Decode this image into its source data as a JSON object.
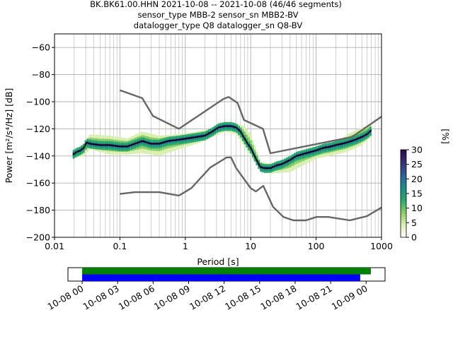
{
  "title_lines": [
    "BK.BK61.00.HHN   2021-10-08 -- 2021-10-08  (46/46 segments)",
    "sensor_type MBB-2 sensor_sn MBB2-BV",
    "datalogger_type Q8 datalogger_sn Q8-BV"
  ],
  "chart_data": {
    "type": "heatmap",
    "xlabel": "Period [s]",
    "ylabel": "Power [m²/s⁴/Hz] [dB]",
    "xscale": "log",
    "xlim": [
      0.01,
      1000
    ],
    "ylim": [
      -200,
      -50
    ],
    "x_ticks": [
      {
        "value": 0.01,
        "label": "0.01"
      },
      {
        "value": 0.1,
        "label": "0.1"
      },
      {
        "value": 1,
        "label": "1"
      },
      {
        "value": 10,
        "label": "10"
      },
      {
        "value": 100,
        "label": "100"
      },
      {
        "value": 1000,
        "label": "1000"
      }
    ],
    "y_ticks": [
      {
        "value": -60,
        "label": "−60"
      },
      {
        "value": -80,
        "label": "−80"
      },
      {
        "value": -100,
        "label": "−100"
      },
      {
        "value": -120,
        "label": "−120"
      },
      {
        "value": -140,
        "label": "−140"
      },
      {
        "value": -160,
        "label": "−160"
      },
      {
        "value": -180,
        "label": "−180"
      },
      {
        "value": -200,
        "label": "−200"
      }
    ],
    "grid": true,
    "series": [
      {
        "role": "mean",
        "x": [
          0.019,
          0.022,
          0.025,
          0.028,
          0.031,
          0.035,
          0.05,
          0.07,
          0.1,
          0.13,
          0.17,
          0.22,
          0.3,
          0.4,
          0.55,
          0.8,
          1.1,
          1.5,
          2,
          2.6,
          3.2,
          4,
          5,
          6,
          7,
          8,
          9,
          10,
          12,
          14,
          16,
          20,
          25,
          30,
          40,
          50,
          70,
          100,
          130,
          170,
          200,
          250,
          300,
          400,
          500,
          600,
          700
        ],
        "y": [
          -139,
          -137,
          -136,
          -134,
          -130,
          -131,
          -132,
          -132,
          -133,
          -133,
          -131,
          -129,
          -131,
          -131,
          -129,
          -128,
          -127,
          -126,
          -125,
          -122,
          -119,
          -118,
          -118,
          -119,
          -122,
          -127,
          -131,
          -134,
          -142,
          -148,
          -149,
          -149,
          -147,
          -146,
          -143,
          -140,
          -138,
          -136,
          -134,
          -133,
          -132,
          -131,
          -130,
          -128,
          -126,
          -124,
          -121
        ]
      },
      {
        "role": "noise-model-high",
        "x": [
          0.1,
          0.22,
          0.32,
          0.8,
          3.8,
          4.6,
          6.3,
          7.9,
          15.4,
          20,
          354.8,
          1000
        ],
        "y": [
          -91.5,
          -97.4,
          -110.5,
          -120,
          -98,
          -96.5,
          -101,
          -113.5,
          -120,
          -138,
          -126,
          -111
        ]
      },
      {
        "role": "noise-model-low",
        "x": [
          0.1,
          0.17,
          0.4,
          0.8,
          1.24,
          2.4,
          4.3,
          5,
          6,
          10,
          12,
          15.6,
          21.9,
          31.6,
          45,
          70,
          101,
          154,
          328,
          600,
          1000
        ],
        "y": [
          -168,
          -166.7,
          -166.7,
          -169.2,
          -163.7,
          -148.6,
          -141.1,
          -141.1,
          -149,
          -163.8,
          -166.2,
          -162.1,
          -177.5,
          -185,
          -187.5,
          -187.5,
          -185,
          -185,
          -187.5,
          -184.4,
          -178
        ]
      }
    ],
    "band": {
      "x": [
        0.019,
        0.028,
        0.035,
        0.07,
        0.13,
        0.22,
        0.4,
        0.8,
        1.5,
        2.6,
        4,
        6,
        8,
        10,
        14,
        20,
        40,
        100,
        200,
        300,
        500,
        700
      ],
      "y_low": [
        -142,
        -140,
        -135,
        -139,
        -139,
        -138,
        -140,
        -135,
        -131,
        -126,
        -122,
        -124,
        -133,
        -140,
        -151,
        -153,
        -152,
        -142,
        -139,
        -137,
        -132,
        -126
      ],
      "y_high": [
        -137,
        -131,
        -124,
        -125,
        -127,
        -122,
        -125,
        -124,
        -122,
        -120,
        -117,
        -116,
        -118,
        -124,
        -144,
        -146,
        -143,
        -134,
        -131,
        -124,
        -119,
        -116
      ]
    },
    "colorbar": {
      "label": "[%]",
      "range": [
        0,
        30
      ],
      "ticks": [
        {
          "value": 0,
          "label": "0"
        },
        {
          "value": 5,
          "label": "5"
        },
        {
          "value": 10,
          "label": "10"
        },
        {
          "value": 15,
          "label": "15"
        },
        {
          "value": 20,
          "label": "20"
        },
        {
          "value": 25,
          "label": "25"
        },
        {
          "value": 30,
          "label": "30"
        }
      ],
      "colors": [
        "#ffffff",
        "#d9efb0",
        "#86cc68",
        "#25a86a",
        "#1a8c8c",
        "#2b5f9a",
        "#3a2d75",
        "#280f4a"
      ]
    }
  },
  "timeline": {
    "x_labels": [
      "10-08 00",
      "10-08 03",
      "10-08 06",
      "10-08 09",
      "10-08 12",
      "10-08 15",
      "10-08 18",
      "10-08 21",
      "10-09 00"
    ],
    "bars": [
      {
        "role": "data-coverage",
        "color": "#008000",
        "start_hours": 0,
        "end_hours": 24.4
      },
      {
        "role": "psd-coverage",
        "color": "#0000ff",
        "start_hours": 0,
        "end_hours": 23.5
      }
    ],
    "range_hours": [
      -1.2,
      25.6
    ]
  },
  "colors": {
    "mean_line": "#000000",
    "noise_models": "#666666",
    "grid": "#b0b0b0"
  }
}
